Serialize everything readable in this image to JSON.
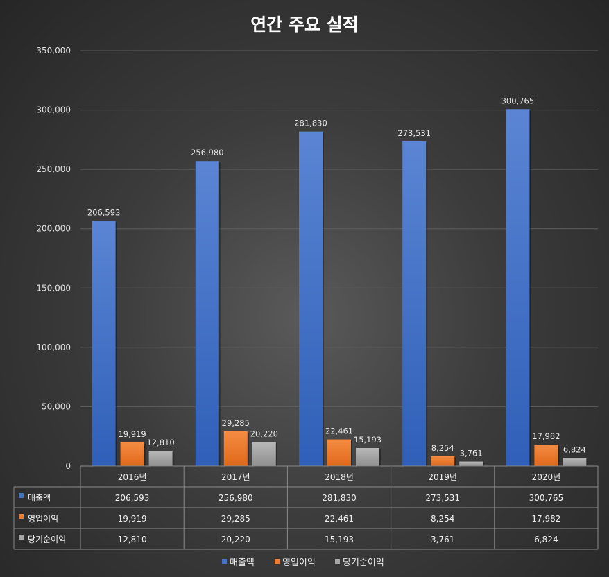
{
  "chart_data": {
    "type": "bar",
    "title": "연간 주요 실적",
    "categories": [
      "2016년",
      "2017년",
      "2018년",
      "2019년",
      "2020년"
    ],
    "series": [
      {
        "name": "매출액",
        "values": [
          206593,
          256980,
          281830,
          273531,
          300765
        ],
        "color": "#4472C4"
      },
      {
        "name": "영업이익",
        "values": [
          19919,
          29285,
          22461,
          8254,
          17982
        ],
        "color": "#ED7D31"
      },
      {
        "name": "당기순이익",
        "values": [
          12810,
          20220,
          15193,
          3761,
          6824
        ],
        "color": "#A5A5A5"
      }
    ],
    "ylim": [
      0,
      350000
    ],
    "yticks": [
      0,
      50000,
      100000,
      150000,
      200000,
      250000,
      300000,
      350000
    ],
    "ytick_labels": [
      "0",
      "50,000",
      "100,000",
      "150,000",
      "200,000",
      "250,000",
      "300,000",
      "350,000"
    ],
    "data_labels": [
      [
        "206,593",
        "256,980",
        "281,830",
        "273,531",
        "300,765"
      ],
      [
        "19,919",
        "29,285",
        "22,461",
        "8,254",
        "17,982"
      ],
      [
        "12,810",
        "20,220",
        "15,193",
        "3,761",
        "6,824"
      ]
    ],
    "grid": true,
    "legend": "bottom",
    "data_table": true
  }
}
